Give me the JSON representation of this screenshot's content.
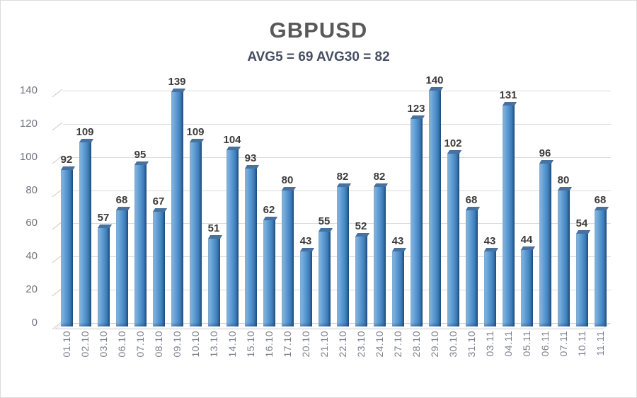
{
  "chart_data": {
    "type": "bar",
    "title": "GBPUSD",
    "subtitle": "AVG5 = 69 AVG30 = 82",
    "categories": [
      "01.10",
      "02.10",
      "03.10",
      "06.10",
      "07.10",
      "08.10",
      "09.10",
      "10.10",
      "13.10",
      "14.10",
      "15.10",
      "16.10",
      "17.10",
      "20.10",
      "21.10",
      "22.10",
      "23.10",
      "24.10",
      "27.10",
      "28.10",
      "29.10",
      "30.10",
      "31.10",
      "03.11",
      "04.11",
      "05.11",
      "06.11",
      "07.11",
      "10.11",
      "11.11"
    ],
    "values": [
      92,
      109,
      57,
      68,
      95,
      67,
      139,
      109,
      51,
      104,
      93,
      62,
      80,
      43,
      55,
      82,
      52,
      82,
      43,
      123,
      140,
      102,
      68,
      43,
      131,
      44,
      96,
      80,
      54,
      68
    ],
    "xlabel": "",
    "ylabel": "",
    "ylim": [
      0,
      140
    ],
    "yticks": [
      0,
      20,
      40,
      60,
      80,
      100,
      120,
      140
    ],
    "grid": true,
    "legend_position": "none",
    "style": "3d-column",
    "colors": {
      "bar_light": "#93bfe4",
      "bar_mid": "#4f8fca",
      "bar_dark": "#1f4e79",
      "bar_cap": "#47719e",
      "gridline": "#dadada",
      "title": "#595959",
      "subtitle": "#454e63",
      "value_label": "#3b3b3b",
      "y_tick_label": "#6e7380",
      "x_tick_label": "#7b7f8d",
      "background": "#ffffff",
      "border": "#dcdcdc"
    }
  }
}
